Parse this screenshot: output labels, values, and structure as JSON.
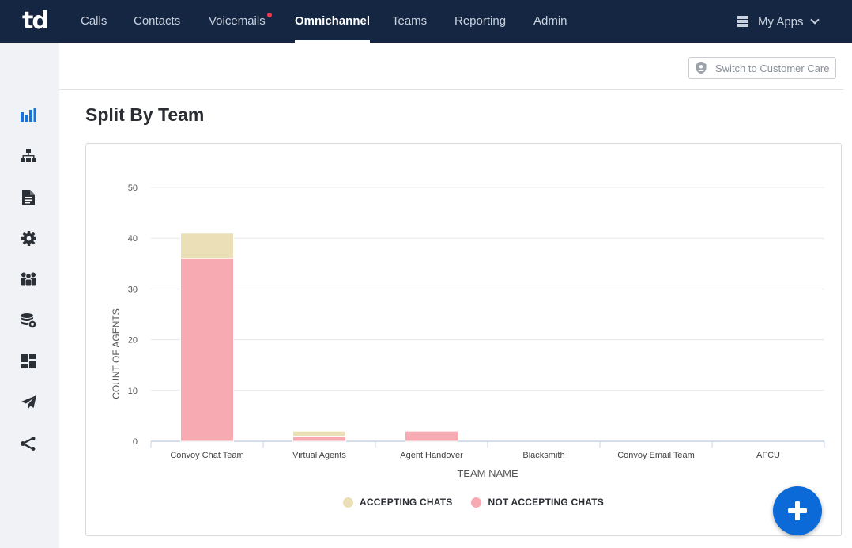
{
  "app": {
    "logo_text": "td"
  },
  "topnav": {
    "items": [
      {
        "label": "Calls",
        "active": false
      },
      {
        "label": "Contacts",
        "active": false
      },
      {
        "label": "Voicemails",
        "active": false,
        "has_notification": true
      },
      {
        "label": "Omnichannel",
        "active": true
      },
      {
        "label": "Teams",
        "active": false
      },
      {
        "label": "Reporting",
        "active": false
      },
      {
        "label": "Admin",
        "active": false
      }
    ],
    "my_apps_label": "My Apps"
  },
  "sidebar": {
    "icons": [
      "bar-chart-icon",
      "org-chart-icon",
      "document-icon",
      "gear-icon",
      "people-icon",
      "database-gear-icon",
      "dashboard-icon",
      "send-icon",
      "share-icon"
    ]
  },
  "subheader": {
    "switch_label": "Switch to Customer Care"
  },
  "page": {
    "title": "Split By Team"
  },
  "colors": {
    "accepting": "#ebdfb8",
    "not_accepting": "#f7aab1",
    "active_icon": "#1a73d9",
    "fab": "#0b6ad8"
  },
  "chart_data": {
    "type": "bar",
    "stacked": true,
    "categories": [
      "Convoy Chat Team",
      "Virtual Agents",
      "Agent Handover",
      "Blacksmith",
      "Convoy Email Team",
      "AFCU"
    ],
    "series": [
      {
        "name": "NOT ACCEPTING CHATS",
        "values": [
          36,
          1,
          2,
          0,
          0,
          0
        ]
      },
      {
        "name": "ACCEPTING CHATS",
        "values": [
          5,
          1,
          0,
          0,
          0,
          0
        ]
      }
    ],
    "xlabel": "TEAM NAME",
    "ylabel": "COUNT OF AGENTS",
    "ylim": [
      0,
      50
    ],
    "yticks": [
      "0",
      "10",
      "20",
      "30",
      "40",
      "50"
    ],
    "grid": true,
    "legend": "bottom",
    "legend_order": [
      "ACCEPTING CHATS",
      "NOT ACCEPTING CHATS"
    ]
  }
}
